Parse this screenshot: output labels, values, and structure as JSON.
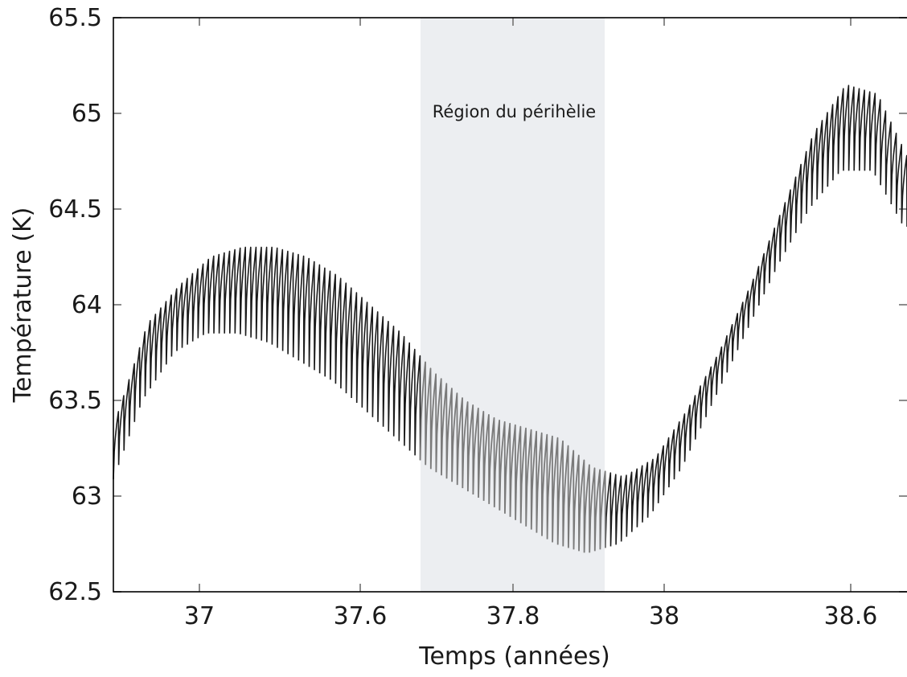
{
  "chart_data": {
    "type": "line",
    "title": "",
    "xlabel": "Temps (années)",
    "ylabel": "Température (K)",
    "ylim": [
      62.5,
      65.5
    ],
    "yticks": [
      "62.5",
      "63",
      "63.5",
      "64",
      "64.5",
      "65",
      "65.5"
    ],
    "xticks": [
      "37",
      "37.6",
      "37.8",
      "38",
      "38.6"
    ],
    "grid": false,
    "legend": "none",
    "annotation": {
      "label": "Région du périhèlie",
      "fill": "#eceef1",
      "x_start_tick": "37.8",
      "x_end_tick": "38"
    },
    "colors": {
      "outside_region": "#1a1a1a",
      "inside_region": "#7a7a7a",
      "axis": "#000000",
      "tick": "#8c8c8c"
    },
    "series": [
      {
        "x": [
          0.0,
          0.04,
          0.08,
          0.12,
          0.16,
          0.2,
          0.24,
          0.28,
          0.32,
          0.36,
          0.4,
          0.44,
          0.48,
          0.52,
          0.56,
          0.6,
          0.64,
          0.68,
          0.72,
          0.76,
          0.8,
          0.84,
          0.88,
          0.92,
          0.96,
          1.0
        ],
        "upper": [
          63.4,
          63.9,
          64.1,
          64.25,
          64.3,
          64.3,
          64.25,
          64.15,
          64.0,
          63.85,
          63.65,
          63.5,
          63.4,
          63.35,
          63.3,
          63.15,
          63.1,
          63.2,
          63.45,
          63.75,
          64.1,
          64.5,
          64.9,
          65.15,
          65.1,
          64.75
        ],
        "lower": [
          63.05,
          63.5,
          63.75,
          63.85,
          63.85,
          63.8,
          63.7,
          63.6,
          63.45,
          63.3,
          63.15,
          63.05,
          62.95,
          62.85,
          62.75,
          62.7,
          62.75,
          62.9,
          63.15,
          63.5,
          63.85,
          64.2,
          64.5,
          64.7,
          64.7,
          64.4
        ],
        "oscillation_count": 150
      }
    ]
  }
}
